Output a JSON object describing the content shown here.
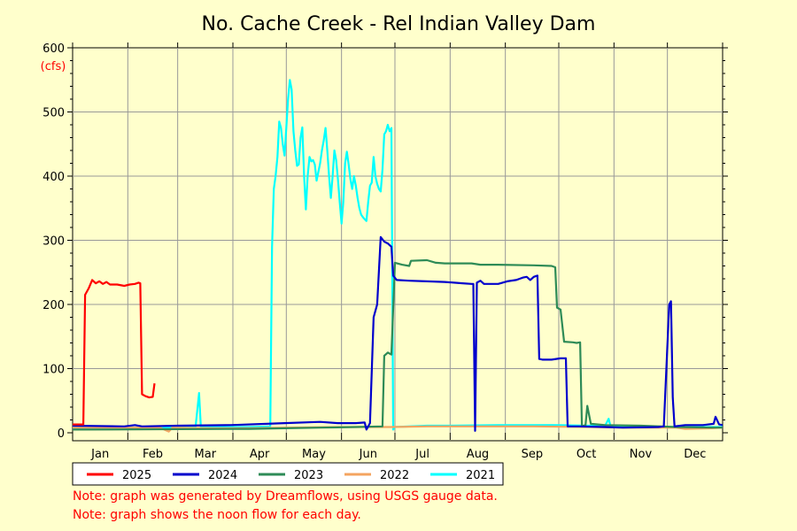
{
  "chart_data": {
    "type": "line",
    "title": "No. Cache Creek - Rel Indian Valley Dam",
    "ylabel": "(cfs)",
    "xlabel": "",
    "ylim": [
      0,
      600
    ],
    "yticks": [
      0,
      100,
      200,
      300,
      400,
      500,
      600
    ],
    "month_labels": [
      "Jan",
      "Feb",
      "Mar",
      "Apr",
      "May",
      "Jun",
      "Jul",
      "Aug",
      "Sep",
      "Oct",
      "Nov",
      "Dec"
    ],
    "xlim": [
      1,
      366
    ],
    "grid": true,
    "legend_placement": "bottom",
    "series": [
      {
        "name": "2025",
        "color": "#ff0000",
        "points": [
          [
            1,
            13
          ],
          [
            7,
            13
          ],
          [
            8,
            215
          ],
          [
            10,
            225
          ],
          [
            12,
            238
          ],
          [
            14,
            233
          ],
          [
            16,
            236
          ],
          [
            18,
            232
          ],
          [
            20,
            235
          ],
          [
            22,
            231
          ],
          [
            26,
            231
          ],
          [
            30,
            229
          ],
          [
            33,
            231
          ],
          [
            36,
            232
          ],
          [
            38,
            234
          ],
          [
            39,
            233
          ],
          [
            40,
            60
          ],
          [
            42,
            57
          ],
          [
            44,
            55
          ],
          [
            46,
            56
          ],
          [
            47,
            77
          ]
        ]
      },
      {
        "name": "2024",
        "color": "#0000cc",
        "points": [
          [
            1,
            11
          ],
          [
            30,
            10
          ],
          [
            36,
            12
          ],
          [
            40,
            10
          ],
          [
            60,
            11
          ],
          [
            90,
            12
          ],
          [
            120,
            15
          ],
          [
            140,
            17
          ],
          [
            150,
            15
          ],
          [
            160,
            15
          ],
          [
            165,
            16
          ],
          [
            166,
            5
          ],
          [
            168,
            15
          ],
          [
            170,
            180
          ],
          [
            171,
            190
          ],
          [
            172,
            200
          ],
          [
            174,
            305
          ],
          [
            176,
            298
          ],
          [
            178,
            295
          ],
          [
            180,
            290
          ],
          [
            181,
            245
          ],
          [
            183,
            238
          ],
          [
            190,
            237
          ],
          [
            200,
            236
          ],
          [
            210,
            235
          ],
          [
            220,
            233
          ],
          [
            225,
            232
          ],
          [
            226,
            232
          ],
          [
            227,
            3
          ],
          [
            228,
            234
          ],
          [
            230,
            237
          ],
          [
            232,
            232
          ],
          [
            240,
            232
          ],
          [
            245,
            236
          ],
          [
            250,
            238
          ],
          [
            252,
            240
          ],
          [
            254,
            242
          ],
          [
            256,
            243
          ],
          [
            258,
            238
          ],
          [
            260,
            243
          ],
          [
            262,
            245
          ],
          [
            263,
            115
          ],
          [
            265,
            114
          ],
          [
            270,
            114
          ],
          [
            275,
            116
          ],
          [
            278,
            116
          ],
          [
            279,
            10
          ],
          [
            285,
            10
          ],
          [
            300,
            9
          ],
          [
            310,
            8
          ],
          [
            330,
            9
          ],
          [
            333,
            10
          ],
          [
            336,
            200
          ],
          [
            337,
            205
          ],
          [
            338,
            55
          ],
          [
            339,
            10
          ],
          [
            345,
            12
          ],
          [
            355,
            12
          ],
          [
            361,
            14
          ],
          [
            362,
            25
          ],
          [
            364,
            13
          ],
          [
            366,
            12
          ]
        ]
      },
      {
        "name": "2023",
        "color": "#2e8b57",
        "points": [
          [
            1,
            5
          ],
          [
            100,
            6
          ],
          [
            120,
            7
          ],
          [
            140,
            8
          ],
          [
            160,
            9
          ],
          [
            175,
            10
          ],
          [
            176,
            120
          ],
          [
            178,
            125
          ],
          [
            180,
            122
          ],
          [
            182,
            265
          ],
          [
            186,
            262
          ],
          [
            190,
            260
          ],
          [
            191,
            268
          ],
          [
            200,
            269
          ],
          [
            205,
            265
          ],
          [
            210,
            264
          ],
          [
            225,
            264
          ],
          [
            230,
            262
          ],
          [
            240,
            262
          ],
          [
            260,
            261
          ],
          [
            270,
            260
          ],
          [
            272,
            258
          ],
          [
            273,
            195
          ],
          [
            275,
            192
          ],
          [
            277,
            142
          ],
          [
            282,
            141
          ],
          [
            284,
            140
          ],
          [
            286,
            141
          ],
          [
            287,
            10
          ],
          [
            289,
            12
          ],
          [
            290,
            42
          ],
          [
            292,
            14
          ],
          [
            300,
            12
          ],
          [
            320,
            11
          ],
          [
            340,
            9
          ],
          [
            360,
            8
          ],
          [
            366,
            8
          ]
        ]
      },
      {
        "name": "2022",
        "color": "#f4a460",
        "points": [
          [
            1,
            8
          ],
          [
            50,
            8
          ],
          [
            55,
            2
          ],
          [
            57,
            8
          ],
          [
            80,
            7
          ],
          [
            100,
            7
          ],
          [
            120,
            8
          ],
          [
            150,
            9
          ],
          [
            180,
            9
          ],
          [
            200,
            10
          ],
          [
            230,
            10
          ],
          [
            260,
            10
          ],
          [
            290,
            9
          ],
          [
            310,
            8
          ],
          [
            340,
            8
          ],
          [
            345,
            6
          ],
          [
            360,
            7
          ],
          [
            366,
            8
          ]
        ]
      },
      {
        "name": "2021",
        "color": "#00ffff",
        "points": [
          [
            1,
            8
          ],
          [
            60,
            8
          ],
          [
            70,
            9
          ],
          [
            72,
            62
          ],
          [
            73,
            9
          ],
          [
            100,
            9
          ],
          [
            112,
            10
          ],
          [
            113,
            290
          ],
          [
            114,
            380
          ],
          [
            115,
            400
          ],
          [
            116,
            430
          ],
          [
            117,
            485
          ],
          [
            118,
            475
          ],
          [
            119,
            450
          ],
          [
            120,
            432
          ],
          [
            121,
            475
          ],
          [
            122,
            520
          ],
          [
            123,
            550
          ],
          [
            124,
            535
          ],
          [
            125,
            470
          ],
          [
            126,
            440
          ],
          [
            127,
            416
          ],
          [
            128,
            418
          ],
          [
            129,
            460
          ],
          [
            130,
            476
          ],
          [
            131,
            400
          ],
          [
            132,
            348
          ],
          [
            133,
            400
          ],
          [
            134,
            430
          ],
          [
            135,
            423
          ],
          [
            136,
            425
          ],
          [
            137,
            418
          ],
          [
            138,
            393
          ],
          [
            140,
            420
          ],
          [
            141,
            440
          ],
          [
            142,
            455
          ],
          [
            143,
            475
          ],
          [
            144,
            440
          ],
          [
            145,
            400
          ],
          [
            146,
            366
          ],
          [
            147,
            400
          ],
          [
            148,
            440
          ],
          [
            149,
            425
          ],
          [
            150,
            395
          ],
          [
            151,
            360
          ],
          [
            152,
            326
          ],
          [
            153,
            360
          ],
          [
            154,
            420
          ],
          [
            155,
            438
          ],
          [
            156,
            418
          ],
          [
            157,
            395
          ],
          [
            158,
            380
          ],
          [
            159,
            400
          ],
          [
            160,
            386
          ],
          [
            161,
            366
          ],
          [
            162,
            350
          ],
          [
            163,
            340
          ],
          [
            164,
            336
          ],
          [
            165,
            333
          ],
          [
            166,
            330
          ],
          [
            167,
            360
          ],
          [
            168,
            385
          ],
          [
            169,
            390
          ],
          [
            170,
            430
          ],
          [
            171,
            400
          ],
          [
            172,
            388
          ],
          [
            173,
            380
          ],
          [
            174,
            376
          ],
          [
            175,
            410
          ],
          [
            176,
            465
          ],
          [
            177,
            470
          ],
          [
            178,
            480
          ],
          [
            179,
            470
          ],
          [
            180,
            475
          ],
          [
            181,
            5
          ],
          [
            182,
            9
          ],
          [
            200,
            11
          ],
          [
            210,
            11
          ],
          [
            240,
            12
          ],
          [
            270,
            12
          ],
          [
            290,
            11
          ],
          [
            300,
            11
          ],
          [
            302,
            22
          ],
          [
            303,
            11
          ],
          [
            320,
            10
          ],
          [
            340,
            9
          ],
          [
            366,
            9
          ]
        ]
      }
    ]
  },
  "notes": [
    "Note: graph was generated by Dreamflows, using USGS gauge data.",
    "Note: graph shows the noon flow for each day."
  ]
}
